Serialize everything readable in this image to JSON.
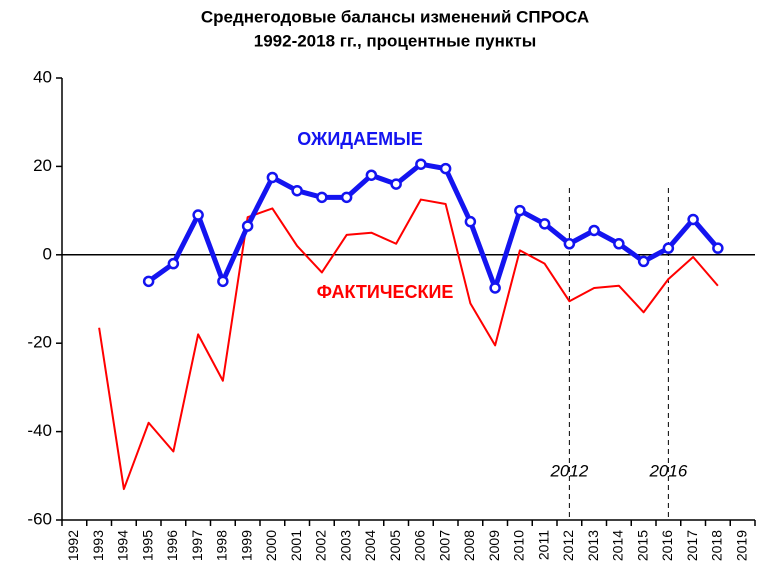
{
  "chart_data": {
    "type": "line",
    "title": "Среднегодовые балансы изменений СПРОСА",
    "subtitle": "1992-2018  гг., процентные пункты",
    "categories": [
      "1992",
      "1993",
      "1994",
      "1995",
      "1996",
      "1997",
      "1998",
      "1999",
      "2000",
      "2001",
      "2002",
      "2003",
      "2004",
      "2005",
      "2006",
      "2007",
      "2008",
      "2009",
      "2010",
      "2011",
      "2012",
      "2013",
      "2014",
      "2015",
      "2016",
      "2017",
      "2018",
      "2019"
    ],
    "series": [
      {
        "name": "ФАКТИЧЕСКИЕ",
        "color": "#ff0000",
        "values": [
          null,
          -16.5,
          -53,
          -38,
          -44.5,
          -18,
          -28.5,
          8.5,
          10.5,
          2,
          -4,
          4.5,
          5,
          2.5,
          12.5,
          11.5,
          -11,
          -20.5,
          1,
          -2,
          -10.5,
          -7.5,
          -7,
          -13,
          -5.5,
          -0.5,
          -7,
          null
        ]
      },
      {
        "name": "ОЖИДАЕМЫЕ",
        "color": "#1414f0",
        "values": [
          null,
          null,
          null,
          -6,
          -2,
          9,
          -6,
          6.5,
          17.5,
          14.5,
          13,
          13,
          18,
          16,
          20.5,
          19.5,
          7.5,
          -7.5,
          10,
          7,
          2.5,
          5.5,
          2.5,
          -1.5,
          1.5,
          8,
          1.5,
          null
        ]
      }
    ],
    "ylim": [
      -60,
      40
    ],
    "yticks": [
      -60,
      -40,
      -20,
      0,
      20,
      40
    ],
    "zero_line": true,
    "vlines": [
      "2012",
      "2016"
    ]
  }
}
